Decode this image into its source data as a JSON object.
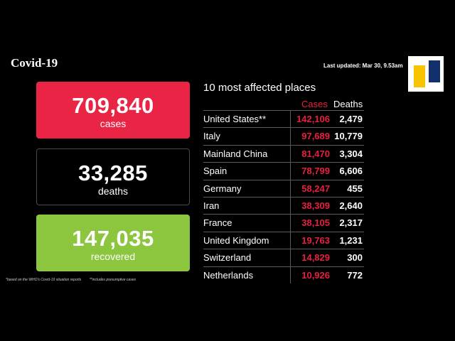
{
  "header": {
    "title": "Covid-19",
    "last_updated": "Last updated: Mar 30, 9.53am"
  },
  "stats": {
    "cases": {
      "value": "709,840",
      "label": "cases",
      "color": "#ea2445"
    },
    "deaths": {
      "value": "33,285",
      "label": "deaths",
      "color": "#000000"
    },
    "recovered": {
      "value": "147,035",
      "label": "recovered",
      "color": "#8cc63f"
    }
  },
  "footnotes": {
    "note1": "*based on the WHO's Covid-19 situation reports",
    "note2": "**includes presumptive cases"
  },
  "table": {
    "title": "10 most affected places",
    "col_cases": "Cases",
    "col_deaths": "Deaths",
    "rows": [
      {
        "place": "United States**",
        "cases": "142,106",
        "deaths": "2,479"
      },
      {
        "place": "Italy",
        "cases": "97,689",
        "deaths": "10,779"
      },
      {
        "place": "Mainland China",
        "cases": "81,470",
        "deaths": "3,304"
      },
      {
        "place": "Spain",
        "cases": "78,799",
        "deaths": "6,606"
      },
      {
        "place": "Germany",
        "cases": "58,247",
        "deaths": "455"
      },
      {
        "place": "Iran",
        "cases": "38,309",
        "deaths": "2,640"
      },
      {
        "place": "France",
        "cases": "38,105",
        "deaths": "2,317"
      },
      {
        "place": "United Kingdom",
        "cases": "19,763",
        "deaths": "1,231"
      },
      {
        "place": "Switzerland",
        "cases": "14,829",
        "deaths": "300"
      },
      {
        "place": "Netherlands",
        "cases": "10,926",
        "deaths": "772"
      }
    ]
  },
  "colors": {
    "accent_red": "#e8203e",
    "logo_yellow": "#f8c400",
    "logo_blue": "#12306b"
  }
}
